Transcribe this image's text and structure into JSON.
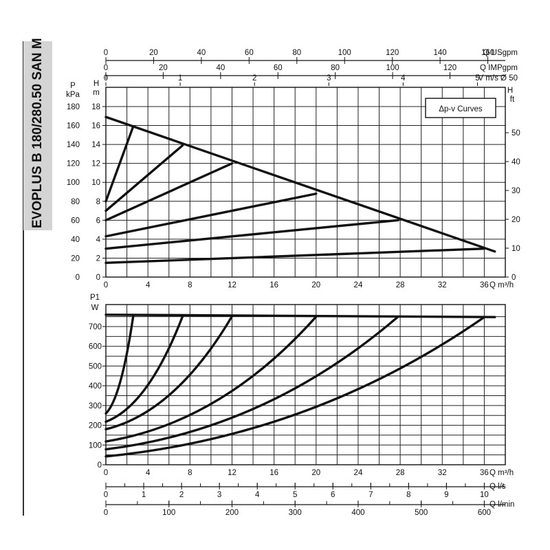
{
  "side_title": "EVOPLUS B 180/280.50 SAN M",
  "chart_data": [
    {
      "type": "line",
      "legend_label": "Δp-v Curves",
      "legend_placement": "top-right",
      "grid": true,
      "x_axis": {
        "label": "Q m³/h",
        "range": [
          0,
          38
        ],
        "ticks": [
          0,
          4,
          8,
          12,
          16,
          20,
          24,
          28,
          32,
          36
        ]
      },
      "y_axis_left": {
        "label_top": "H",
        "label_bottom": "m",
        "range": [
          0,
          18
        ],
        "ticks": [
          0,
          2,
          4,
          6,
          8,
          10,
          12,
          14,
          16,
          18
        ]
      },
      "y_axis_pressure": {
        "label_top": "P",
        "label_bottom": "kPa",
        "ticks": [
          0,
          20,
          40,
          60,
          80,
          100,
          120,
          140,
          160,
          180
        ]
      },
      "y_axis_right": {
        "label_top": "H",
        "label_bottom": "ft",
        "ticks": [
          0,
          10,
          20,
          30,
          40,
          50
        ]
      },
      "top_axes": [
        {
          "label": "Q USgpm",
          "ticks": [
            0,
            20,
            40,
            60,
            80,
            100,
            120,
            140,
            160
          ]
        },
        {
          "label": "Q IMPgpm",
          "ticks": [
            0,
            20,
            40,
            60,
            80,
            100,
            120
          ]
        },
        {
          "label": "V m/s Ø 50",
          "ticks": [
            0,
            1,
            2,
            3,
            4,
            5
          ]
        }
      ],
      "envelope": {
        "x": [
          0,
          37
        ],
        "y": [
          16.9,
          2.7
        ]
      },
      "series": [
        {
          "x": [
            0,
            2.6
          ],
          "y": [
            8.0,
            15.9
          ]
        },
        {
          "x": [
            0,
            7.3
          ],
          "y": [
            7.0,
            13.9
          ]
        },
        {
          "x": [
            0,
            12.0
          ],
          "y": [
            6.0,
            12.0
          ]
        },
        {
          "x": [
            0,
            20.0
          ],
          "y": [
            4.3,
            8.8
          ]
        },
        {
          "x": [
            0,
            27.8
          ],
          "y": [
            3.0,
            6.0
          ]
        },
        {
          "x": [
            0,
            36.0
          ],
          "y": [
            1.5,
            3.0
          ]
        }
      ]
    },
    {
      "type": "line",
      "grid": true,
      "x_axis": {
        "label": "Q m³/h",
        "range": [
          0,
          38
        ],
        "ticks": [
          0,
          4,
          8,
          12,
          16,
          20,
          24,
          28,
          32,
          36
        ]
      },
      "y_axis": {
        "label_top": "P1",
        "label_bottom": "W",
        "range": [
          0,
          780
        ],
        "ticks": [
          0,
          100,
          200,
          300,
          400,
          500,
          600,
          700
        ]
      },
      "bottom_axes": [
        {
          "label": "Q l/s",
          "ticks": [
            0,
            1,
            2,
            3,
            4,
            5,
            6,
            7,
            8,
            9,
            10
          ]
        },
        {
          "label": "Q l/min",
          "ticks": [
            0,
            100,
            200,
            300,
            400,
            500,
            600
          ]
        }
      ],
      "max_power": {
        "x": [
          0,
          37
        ],
        "y": [
          760,
          748
        ]
      },
      "series": [
        {
          "x": [
            0,
            2.6
          ],
          "y": [
            260,
            752
          ]
        },
        {
          "x": [
            0,
            7.3
          ],
          "y": [
            218,
            752
          ]
        },
        {
          "x": [
            0,
            12.0
          ],
          "y": [
            180,
            752
          ]
        },
        {
          "x": [
            0,
            20.0
          ],
          "y": [
            118,
            750
          ]
        },
        {
          "x": [
            0,
            27.8
          ],
          "y": [
            78,
            750
          ]
        },
        {
          "x": [
            0,
            36.0
          ],
          "y": [
            42,
            748
          ]
        }
      ]
    }
  ]
}
